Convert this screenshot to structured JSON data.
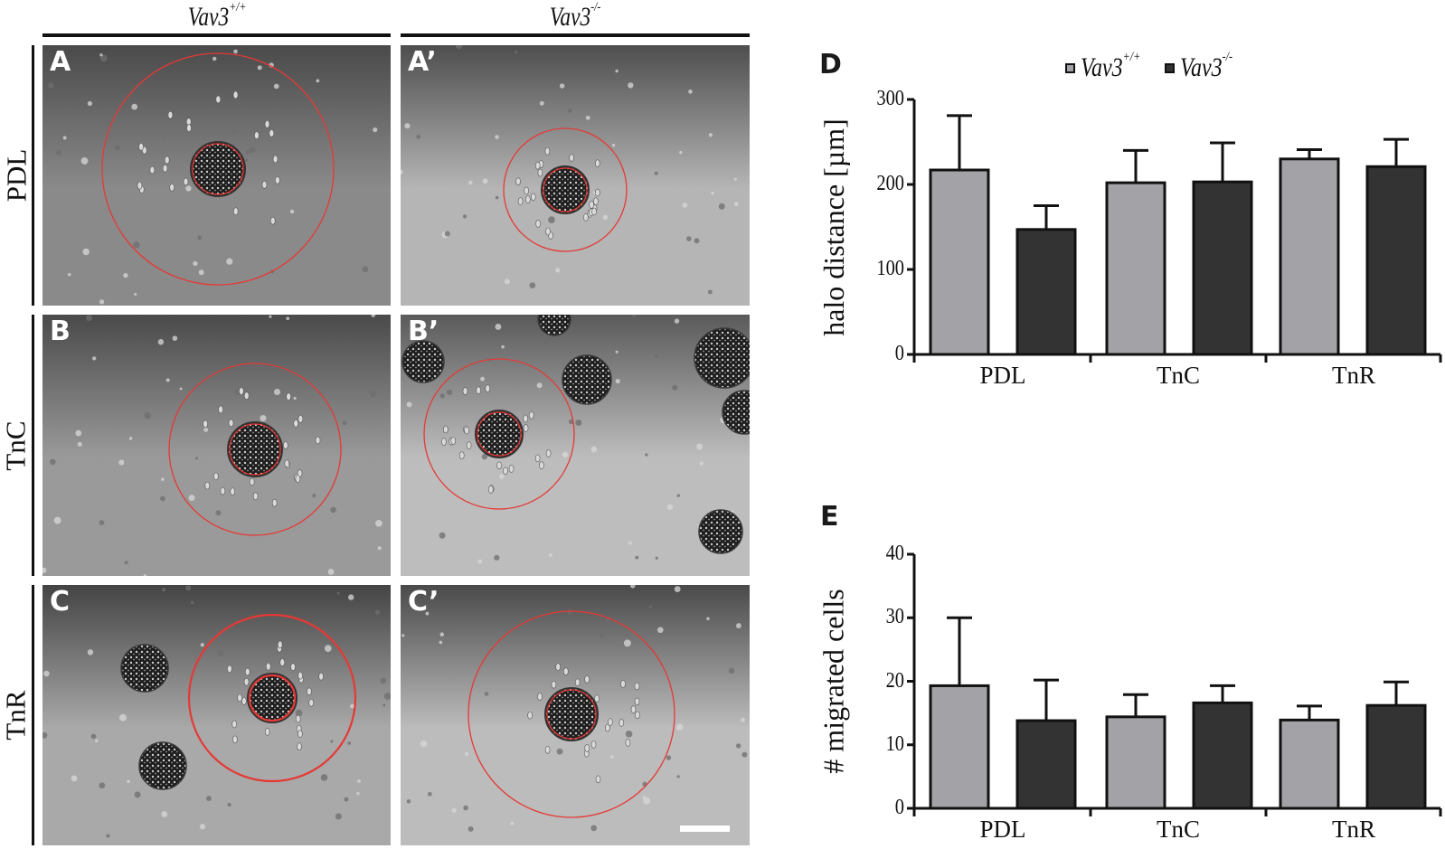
{
  "figure": {
    "column_headers": [
      {
        "label": "Vav3",
        "superscript": "+/+"
      },
      {
        "label": "Vav3",
        "superscript": "-/-"
      }
    ],
    "row_labels": [
      "PDL",
      "TnC",
      "TnR"
    ],
    "panels": [
      {
        "letter": "A",
        "row": "PDL",
        "genotype": "Vav3+/+"
      },
      {
        "letter": "A’",
        "row": "PDL",
        "genotype": "Vav3-/-"
      },
      {
        "letter": "B",
        "row": "TnC",
        "genotype": "Vav3+/+"
      },
      {
        "letter": "B’",
        "row": "TnC",
        "genotype": "Vav3-/-"
      },
      {
        "letter": "C",
        "row": "TnR",
        "genotype": "Vav3+/+"
      },
      {
        "letter": "C’",
        "row": "TnR",
        "genotype": "Vav3-/-"
      }
    ],
    "halo_color": "#e53935",
    "scale_bar": "scale-bar-white"
  },
  "legend": {
    "items": [
      {
        "label": "Vav3",
        "superscript": "+/+",
        "color": "#a3a2a6"
      },
      {
        "label": "Vav3",
        "superscript": "-/-",
        "color": "#333333"
      }
    ]
  },
  "chart_data": [
    {
      "panel": "D",
      "type": "bar",
      "title": "",
      "xlabel": "",
      "ylabel": "halo distance [µm]",
      "ylim": [
        0,
        300
      ],
      "yticks": [
        0,
        100,
        200,
        300
      ],
      "categories": [
        "PDL",
        "TnC",
        "TnR"
      ],
      "grid": false,
      "legend_position": "top",
      "series": [
        {
          "name": "Vav3+/+",
          "color": "#a3a2a6",
          "values": [
            217,
            202,
            230
          ],
          "error": [
            64,
            38,
            11
          ]
        },
        {
          "name": "Vav3-/-",
          "color": "#333333",
          "values": [
            147,
            203,
            221
          ],
          "error": [
            28,
            46,
            32
          ]
        }
      ]
    },
    {
      "panel": "E",
      "type": "bar",
      "title": "",
      "xlabel": "",
      "ylabel": "# migrated cells",
      "ylim": [
        0,
        40
      ],
      "yticks": [
        0,
        10,
        20,
        30,
        40
      ],
      "categories": [
        "PDL",
        "TnC",
        "TnR"
      ],
      "grid": false,
      "series": [
        {
          "name": "Vav3+/+",
          "color": "#a3a2a6",
          "values": [
            19.3,
            14.4,
            13.9
          ],
          "error": [
            10.7,
            3.5,
            2.2
          ]
        },
        {
          "name": "Vav3-/-",
          "color": "#333333",
          "values": [
            13.8,
            16.6,
            16.2
          ],
          "error": [
            6.4,
            2.7,
            3.7
          ]
        }
      ]
    }
  ],
  "charts": {
    "D": {
      "letter": "D",
      "ylabel": "halo distance [µm]",
      "ticks": [
        "0",
        "100",
        "200",
        "300"
      ],
      "cats": [
        "PDL",
        "TnC",
        "TnR"
      ]
    },
    "E": {
      "letter": "E",
      "ylabel": "# migrated cells",
      "ticks": [
        "0",
        "10",
        "20",
        "30",
        "40"
      ],
      "cats": [
        "PDL",
        "TnC",
        "TnR"
      ]
    }
  }
}
